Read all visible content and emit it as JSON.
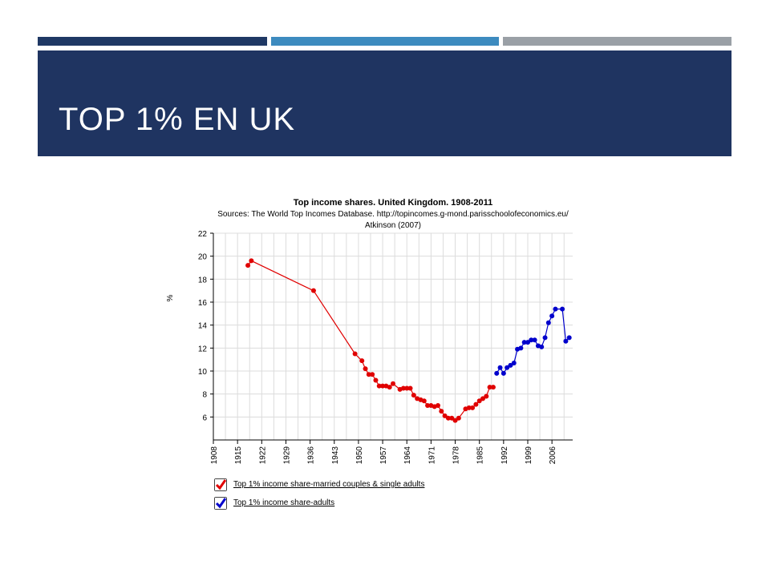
{
  "slide": {
    "title": "TOP 1% EN UK",
    "colors": {
      "band": "#1f3461",
      "accent1": "#1f3864",
      "accent2": "#3d8bbf",
      "accent3": "#9aa0a6"
    }
  },
  "chart_data": {
    "type": "line",
    "title": "Top income shares. United Kingdom. 1908-2011",
    "subtitle_lines": [
      "Sources: The World Top Incomes Database. http://topincomes.g-mond.parisschoolofeconomics.eu/",
      "Atkinson (2007)"
    ],
    "xlabel": "",
    "ylabel": "%",
    "xlim": [
      1908,
      2012
    ],
    "ylim": [
      4,
      22
    ],
    "x_ticks": [
      "1908",
      "1915",
      "1922",
      "1929",
      "1936",
      "1943",
      "1950",
      "1957",
      "1964",
      "1971",
      "1978",
      "1985",
      "1992",
      "1999",
      "2006"
    ],
    "y_ticks": [
      "6",
      "8",
      "10",
      "12",
      "14",
      "16",
      "18",
      "20",
      "22"
    ],
    "grid": true,
    "legend_position": "bottom-left",
    "series": [
      {
        "name": "Top 1% income share-married couples & single adults",
        "color": "#e00000",
        "points": [
          [
            1918,
            19.2
          ],
          [
            1919,
            19.6
          ],
          [
            1937,
            17.0
          ],
          [
            1949,
            11.5
          ],
          [
            1951,
            10.9
          ],
          [
            1952,
            10.2
          ],
          [
            1953,
            9.7
          ],
          [
            1954,
            9.7
          ],
          [
            1955,
            9.2
          ],
          [
            1956,
            8.7
          ],
          [
            1957,
            8.7
          ],
          [
            1958,
            8.7
          ],
          [
            1959,
            8.6
          ],
          [
            1960,
            8.9
          ],
          [
            1962,
            8.4
          ],
          [
            1963,
            8.5
          ],
          [
            1964,
            8.5
          ],
          [
            1965,
            8.5
          ],
          [
            1966,
            7.9
          ],
          [
            1967,
            7.6
          ],
          [
            1968,
            7.5
          ],
          [
            1969,
            7.4
          ],
          [
            1970,
            7.0
          ],
          [
            1971,
            7.0
          ],
          [
            1972,
            6.9
          ],
          [
            1973,
            7.0
          ],
          [
            1974,
            6.5
          ],
          [
            1975,
            6.1
          ],
          [
            1976,
            5.9
          ],
          [
            1977,
            5.9
          ],
          [
            1978,
            5.7
          ],
          [
            1979,
            5.9
          ],
          [
            1981,
            6.7
          ],
          [
            1982,
            6.8
          ],
          [
            1983,
            6.8
          ],
          [
            1984,
            7.1
          ],
          [
            1985,
            7.4
          ],
          [
            1986,
            7.6
          ],
          [
            1987,
            7.8
          ],
          [
            1988,
            8.6
          ],
          [
            1989,
            8.6
          ]
        ]
      },
      {
        "name": "Top 1% income share-adults",
        "color": "#0000cc",
        "points": [
          [
            1990,
            9.8
          ],
          [
            1991,
            10.3
          ],
          [
            1992,
            9.8
          ],
          [
            1993,
            10.3
          ],
          [
            1994,
            10.5
          ],
          [
            1995,
            10.7
          ],
          [
            1996,
            11.9
          ],
          [
            1997,
            12.0
          ],
          [
            1998,
            12.5
          ],
          [
            1999,
            12.5
          ],
          [
            2000,
            12.7
          ],
          [
            2001,
            12.7
          ],
          [
            2002,
            12.2
          ],
          [
            2003,
            12.1
          ],
          [
            2004,
            12.9
          ],
          [
            2005,
            14.2
          ],
          [
            2006,
            14.8
          ],
          [
            2007,
            15.4
          ],
          [
            2009,
            15.4
          ],
          [
            2010,
            12.6
          ],
          [
            2011,
            12.9
          ]
        ]
      }
    ]
  }
}
